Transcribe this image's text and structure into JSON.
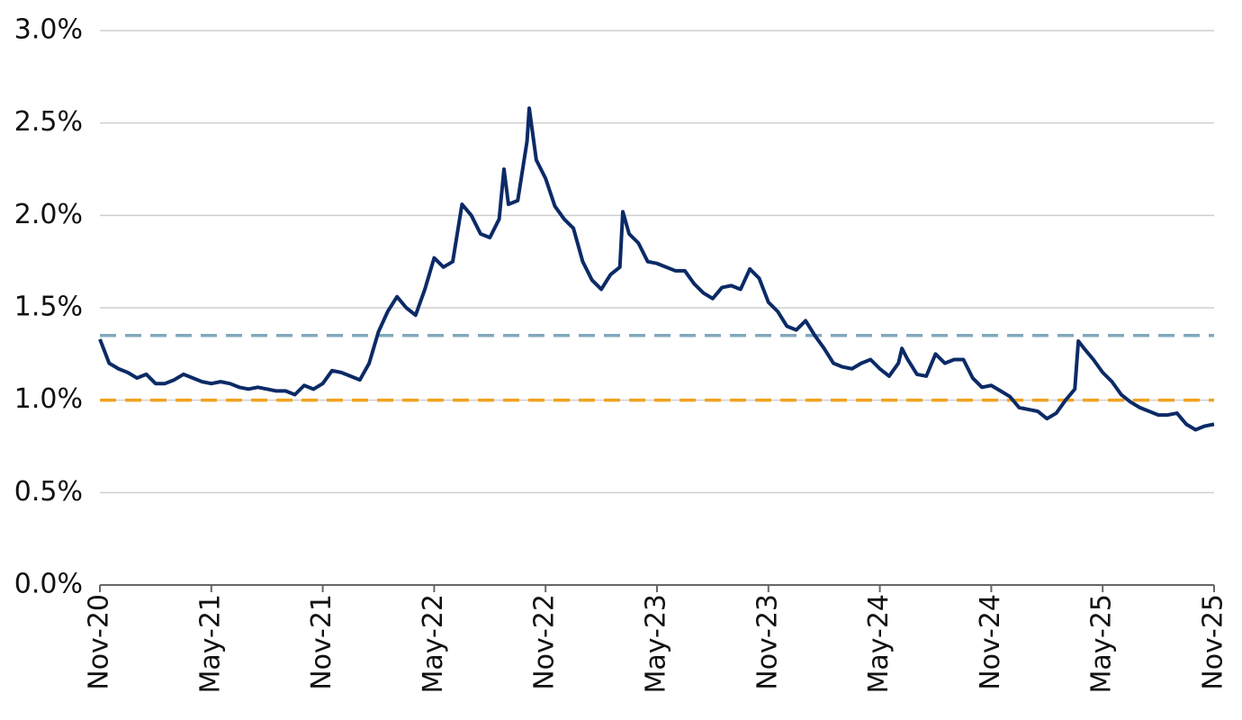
{
  "chart_data": {
    "type": "line",
    "x": [
      0,
      0.5,
      1,
      1.5,
      2,
      2.5,
      3,
      3.5,
      4,
      4.5,
      5,
      5.5,
      6,
      6.5,
      7,
      7.5,
      8,
      8.5,
      9,
      9.5,
      10,
      10.5,
      11,
      11.5,
      12,
      12.5,
      13,
      13.5,
      14,
      14.5,
      15,
      15.5,
      16,
      16.5,
      17,
      17.5,
      18,
      18.5,
      19,
      19.5,
      20,
      20.5,
      21,
      21.5,
      21.76,
      22,
      22.5,
      23,
      23.12,
      23.5,
      24,
      24.5,
      25,
      25.5,
      26,
      26.5,
      27,
      27.5,
      28,
      28.16,
      28.5,
      29,
      29.5,
      30,
      30.5,
      31,
      31.5,
      32,
      32.5,
      33,
      33.5,
      34,
      34.5,
      35,
      35.5,
      36,
      36.5,
      37,
      37.5,
      38,
      38.5,
      39,
      39.5,
      40,
      40.5,
      41,
      41.5,
      42,
      42.5,
      43,
      43.19,
      43.5,
      44,
      44.5,
      45,
      45.5,
      46,
      46.5,
      47,
      47.5,
      48,
      48.5,
      49,
      49.5,
      50,
      50.5,
      51,
      51.5,
      52,
      52.5,
      52.69,
      53,
      53.5,
      54,
      54.5,
      55,
      55.5,
      56,
      56.5,
      57,
      57.5,
      58,
      58.5,
      59,
      59.5,
      60
    ],
    "series": [
      {
        "color": "#0b2a66",
        "values": [
          1.33,
          1.2,
          1.17,
          1.15,
          1.12,
          1.14,
          1.09,
          1.09,
          1.11,
          1.14,
          1.12,
          1.1,
          1.09,
          1.1,
          1.09,
          1.07,
          1.06,
          1.07,
          1.06,
          1.05,
          1.05,
          1.03,
          1.08,
          1.06,
          1.09,
          1.16,
          1.15,
          1.13,
          1.11,
          1.2,
          1.37,
          1.48,
          1.56,
          1.5,
          1.46,
          1.6,
          1.77,
          1.72,
          1.75,
          2.06,
          2.0,
          1.9,
          1.88,
          1.98,
          2.25,
          2.06,
          2.08,
          2.4,
          2.58,
          2.3,
          2.2,
          2.05,
          1.98,
          1.93,
          1.75,
          1.65,
          1.6,
          1.68,
          1.72,
          2.02,
          1.9,
          1.85,
          1.75,
          1.74,
          1.72,
          1.7,
          1.7,
          1.63,
          1.58,
          1.55,
          1.61,
          1.62,
          1.6,
          1.71,
          1.66,
          1.53,
          1.48,
          1.4,
          1.38,
          1.43,
          1.35,
          1.28,
          1.2,
          1.18,
          1.17,
          1.2,
          1.22,
          1.17,
          1.13,
          1.2,
          1.28,
          1.22,
          1.14,
          1.13,
          1.25,
          1.2,
          1.22,
          1.22,
          1.12,
          1.07,
          1.08,
          1.05,
          1.02,
          0.96,
          0.95,
          0.94,
          0.9,
          0.93,
          1.0,
          1.06,
          1.32,
          1.28,
          1.22,
          1.15,
          1.1,
          1.03,
          0.99,
          0.96,
          0.94,
          0.92,
          0.92,
          0.93,
          0.87,
          0.84,
          0.86,
          0.87
        ]
      }
    ],
    "reference_lines": [
      {
        "value": 1.35,
        "color": "#82a8bd"
      },
      {
        "value": 1.0,
        "color": "#f0a21e"
      }
    ],
    "xlim": [
      0,
      60
    ],
    "xticks": [
      {
        "value": 0,
        "label": "Nov-20"
      },
      {
        "value": 6,
        "label": "May-21"
      },
      {
        "value": 12,
        "label": "Nov-21"
      },
      {
        "value": 18,
        "label": "May-22"
      },
      {
        "value": 24,
        "label": "Nov-22"
      },
      {
        "value": 30,
        "label": "May-23"
      },
      {
        "value": 36,
        "label": "Nov-23"
      },
      {
        "value": 42,
        "label": "May-24"
      },
      {
        "value": 48,
        "label": "Nov-24"
      },
      {
        "value": 54,
        "label": "May-25"
      },
      {
        "value": 60,
        "label": "Nov-25"
      }
    ],
    "ylim": [
      0,
      3
    ],
    "yticks": [
      {
        "value": 0,
        "label": "0.0%"
      },
      {
        "value": 0.5,
        "label": "0.5%"
      },
      {
        "value": 1,
        "label": "1.0%"
      },
      {
        "value": 1.5,
        "label": "1.5%"
      },
      {
        "value": 2,
        "label": "2.0%"
      },
      {
        "value": 2.5,
        "label": "2.5%"
      },
      {
        "value": 3,
        "label": "3.0%"
      }
    ],
    "grid": true
  }
}
